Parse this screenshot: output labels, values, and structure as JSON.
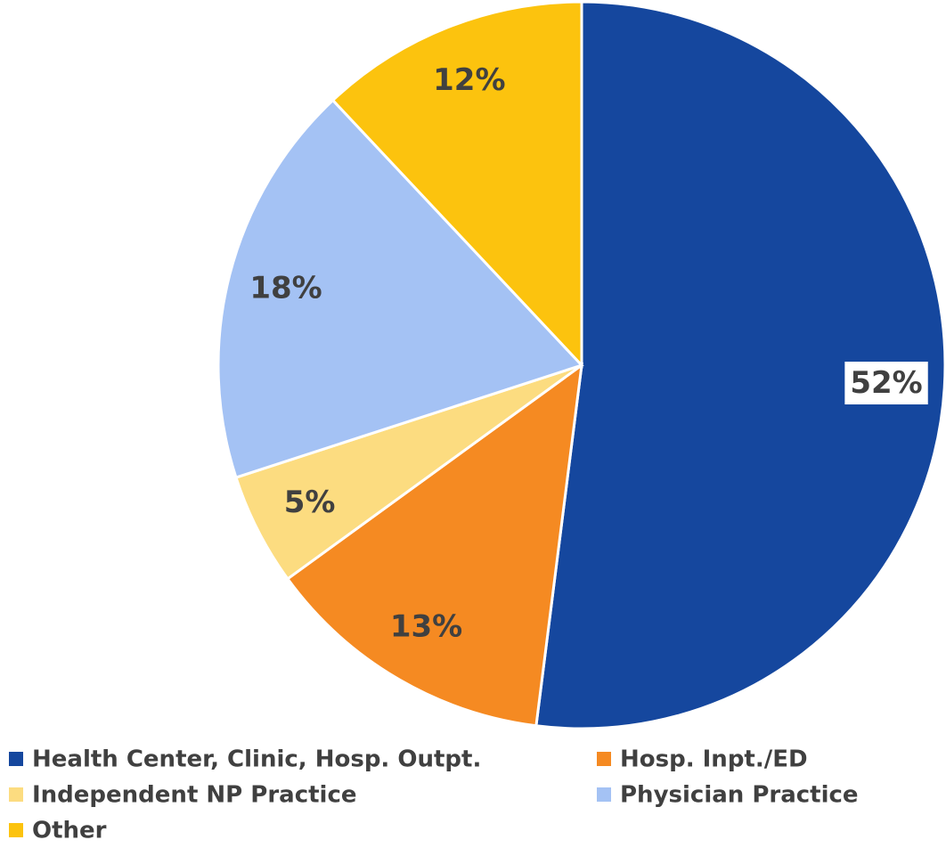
{
  "chart_data": {
    "type": "pie",
    "categories": [
      "Health Center, Clinic, Hosp. Outpt.",
      "Hosp. Inpt./ED",
      "Independent NP Practice",
      "Physician Practice",
      "Other"
    ],
    "values": [
      52,
      13,
      5,
      18,
      12
    ],
    "value_labels": [
      "52%",
      "13%",
      "5%",
      "18%",
      "12%"
    ],
    "colors": [
      "#15479e",
      "#f58a22",
      "#fcdc80",
      "#a4c2f4",
      "#fcc30e"
    ],
    "legend": "bottom"
  }
}
